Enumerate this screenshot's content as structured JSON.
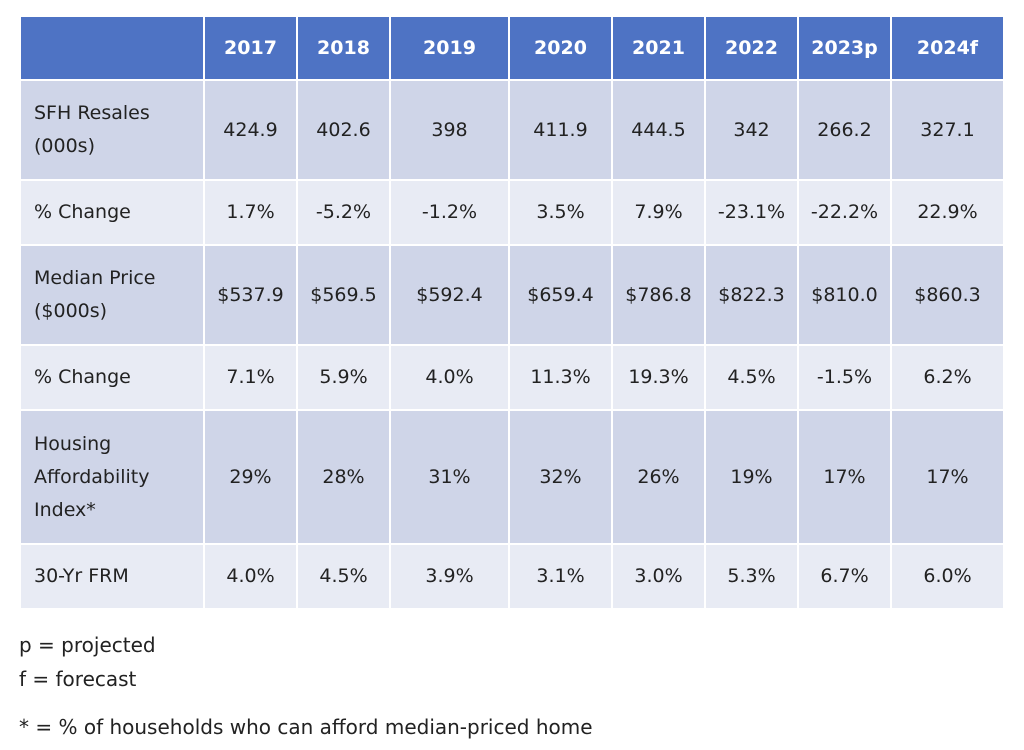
{
  "chart_data": {
    "type": "table",
    "columns": [
      "",
      "2017",
      "2018",
      "2019",
      "2020",
      "2021",
      "2022",
      "2023p",
      "2024f"
    ],
    "rows": [
      {
        "label": "SFH Resales (000s)",
        "values": [
          "424.9",
          "402.6",
          "398",
          "411.9",
          "444.5",
          "342",
          "266.2",
          "327.1"
        ]
      },
      {
        "label": "% Change",
        "values": [
          "1.7%",
          "-5.2%",
          "-1.2%",
          "3.5%",
          "7.9%",
          "-23.1%",
          "-22.2%",
          "22.9%"
        ]
      },
      {
        "label": "Median Price ($000s)",
        "values": [
          "$537.9",
          "$569.5",
          "$592.4",
          "$659.4",
          "$786.8",
          "$822.3",
          "$810.0",
          "$860.3"
        ]
      },
      {
        "label": "% Change",
        "values": [
          "7.1%",
          "5.9%",
          "4.0%",
          "11.3%",
          "19.3%",
          "4.5%",
          "-1.5%",
          "6.2%"
        ]
      },
      {
        "label": "Housing Affordability Index*",
        "values": [
          "29%",
          "28%",
          "31%",
          "32%",
          "26%",
          "19%",
          "17%",
          "17%"
        ]
      },
      {
        "label": "30-Yr FRM",
        "values": [
          "4.0%",
          "4.5%",
          "3.9%",
          "3.1%",
          "3.0%",
          "5.3%",
          "6.7%",
          "6.0%"
        ]
      }
    ]
  },
  "notes": {
    "projected": "p = projected",
    "forecast": "f = forecast",
    "footnote": "* = % of households who can afford median-priced home"
  },
  "colors": {
    "header_bg": "#4e73c4",
    "row_dark": "#cfd5e8",
    "row_light": "#e8ebf4"
  }
}
